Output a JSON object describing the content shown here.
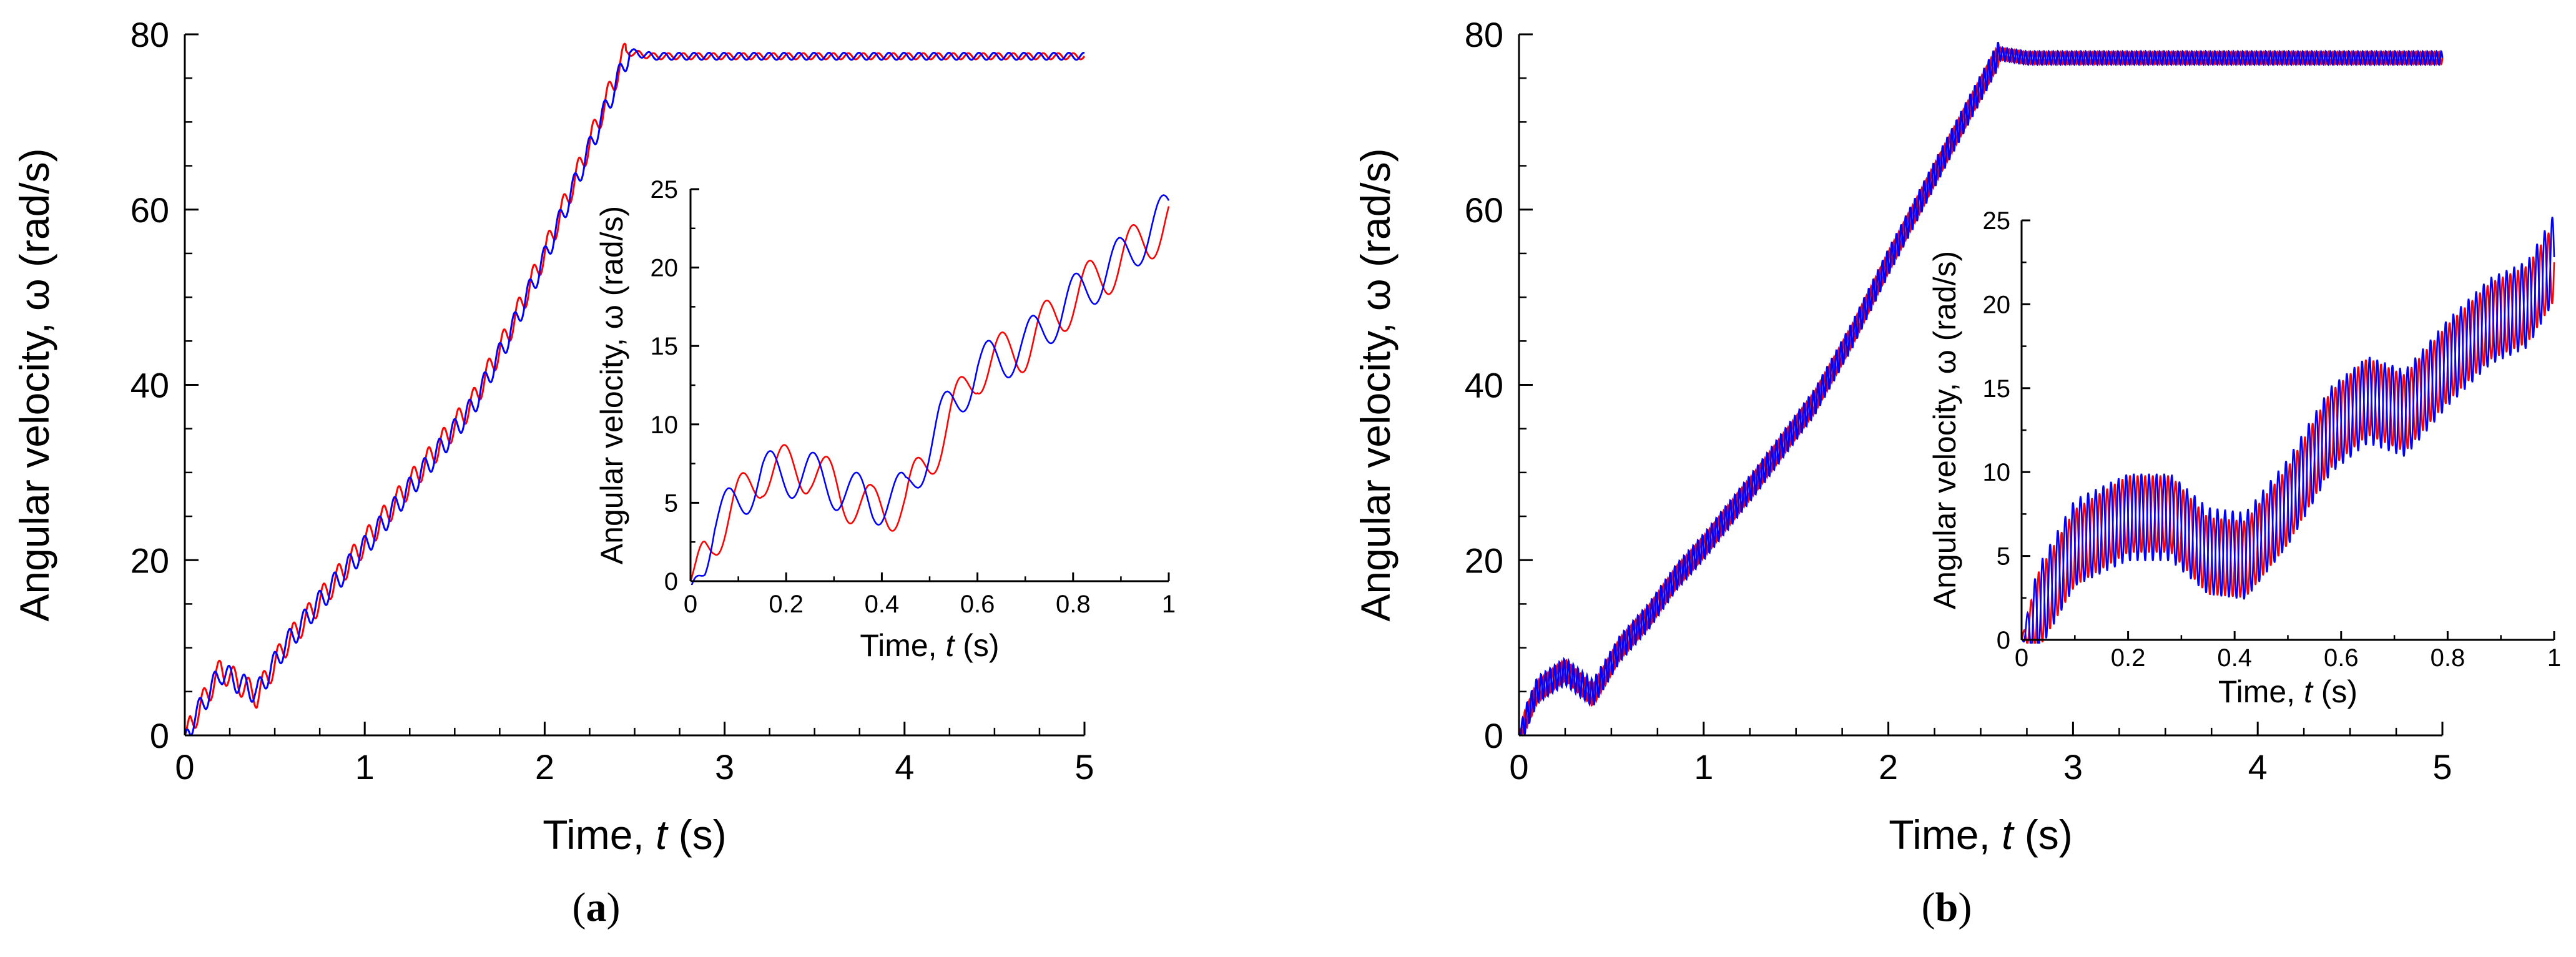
{
  "colors": {
    "red_series": "#ff0000",
    "blue_series": "#0000ff",
    "axis": "#000000"
  },
  "chart_data": [
    {
      "id": "a",
      "type": "line",
      "panel_label": "a",
      "main": {
        "xlabel_prefix": "Time, ",
        "xlabel_var": "t",
        "xlabel_unit": " (s)",
        "ylabel": "Angular velocity, ω (rad/s)",
        "xlim": [
          0,
          5
        ],
        "ylim": [
          0,
          80
        ],
        "xticks": [
          0,
          1,
          2,
          3,
          4,
          5
        ],
        "yticks": [
          0,
          20,
          40,
          60,
          80
        ],
        "xtick_labels": [
          "0",
          "1",
          "2",
          "3",
          "4",
          "5"
        ],
        "ytick_labels": [
          "0",
          "20",
          "40",
          "60",
          "80"
        ],
        "series": [
          {
            "name": "red",
            "color": "#ff0000",
            "base": [
              [
                0,
                0
              ],
              [
                0.2,
                7.5
              ],
              [
                0.4,
                4.5
              ],
              [
                0.55,
                10
              ],
              [
                0.7,
                14
              ],
              [
                1,
                22
              ],
              [
                1.3,
                30
              ],
              [
                1.6,
                38
              ],
              [
                1.8,
                46
              ],
              [
                2.0,
                55
              ],
              [
                2.2,
                65
              ],
              [
                2.45,
                78
              ],
              [
                2.6,
                77.5
              ],
              [
                5,
                77.5
              ]
            ],
            "ripple": {
              "amp": 1.4,
              "amp_end": 0.35,
              "freq": 12,
              "phase": 0,
              "settle": 2.45
            }
          },
          {
            "name": "blue",
            "color": "#0000ff",
            "base": [
              [
                0,
                0
              ],
              [
                0.2,
                7.2
              ],
              [
                0.4,
                4.8
              ],
              [
                0.55,
                10
              ],
              [
                0.7,
                14
              ],
              [
                1,
                21.5
              ],
              [
                1.3,
                29.5
              ],
              [
                1.6,
                37.5
              ],
              [
                1.8,
                45.5
              ],
              [
                2.0,
                54.5
              ],
              [
                2.2,
                64.5
              ],
              [
                2.47,
                78
              ],
              [
                2.6,
                77.5
              ],
              [
                5,
                77.5
              ]
            ],
            "ripple": {
              "amp": 1.3,
              "amp_end": 0.4,
              "freq": 12,
              "phase": 1.8,
              "settle": 2.47
            }
          }
        ]
      },
      "inset": {
        "xlabel_prefix": "Time, ",
        "xlabel_var": "t",
        "xlabel_unit": " (s)",
        "ylabel": "Angular velocity, ω (rad/s)",
        "xlim": [
          0,
          1
        ],
        "ylim": [
          0,
          25
        ],
        "xticks": [
          0,
          0.2,
          0.4,
          0.6,
          0.8,
          1
        ],
        "yticks": [
          0,
          5,
          10,
          15,
          20,
          25
        ],
        "xtick_labels": [
          "0",
          "0.2",
          "0.4",
          "0.6",
          "0.8",
          "1"
        ],
        "ytick_labels": [
          "0",
          "5",
          "10",
          "15",
          "20",
          "25"
        ],
        "series": [
          {
            "name": "red",
            "color": "#ff0000",
            "base": [
              [
                0,
                0
              ],
              [
                0.05,
                3
              ],
              [
                0.15,
                7
              ],
              [
                0.25,
                7.2
              ],
              [
                0.32,
                5.5
              ],
              [
                0.38,
                4.5
              ],
              [
                0.45,
                5
              ],
              [
                0.52,
                9
              ],
              [
                0.6,
                13.5
              ],
              [
                0.7,
                15
              ],
              [
                0.8,
                18
              ],
              [
                0.9,
                20.5
              ],
              [
                1,
                23
              ]
            ],
            "ripple": {
              "amp": 1.6,
              "freq": 11,
              "phase": 0.6
            }
          },
          {
            "name": "blue",
            "color": "#0000ff",
            "base": [
              [
                0,
                -0.5
              ],
              [
                0.05,
                3.5
              ],
              [
                0.15,
                6.8
              ],
              [
                0.25,
                6.8
              ],
              [
                0.32,
                5.8
              ],
              [
                0.38,
                5
              ],
              [
                0.45,
                5.5
              ],
              [
                0.52,
                10
              ],
              [
                0.6,
                13.5
              ],
              [
                0.7,
                15
              ],
              [
                0.8,
                18
              ],
              [
                0.9,
                20.5
              ],
              [
                1,
                23.5
              ]
            ],
            "ripple": {
              "amp": 1.5,
              "freq": 11,
              "phase": 2.6
            }
          }
        ]
      }
    },
    {
      "id": "b",
      "type": "line",
      "panel_label": "b",
      "main": {
        "xlabel_prefix": "Time, ",
        "xlabel_var": "t",
        "xlabel_unit": " (s)",
        "ylabel": "Angular velocity, ω (rad/s)",
        "xlim": [
          0,
          5
        ],
        "ylim": [
          0,
          80
        ],
        "xticks": [
          0,
          1,
          2,
          3,
          4,
          5
        ],
        "yticks": [
          0,
          20,
          40,
          60,
          80
        ],
        "xtick_labels": [
          "0",
          "1",
          "2",
          "3",
          "4",
          "5"
        ],
        "ytick_labels": [
          "0",
          "20",
          "40",
          "60",
          "80"
        ],
        "series": [
          {
            "name": "red",
            "color": "#ff0000",
            "base": [
              [
                0,
                0
              ],
              [
                0.1,
                5
              ],
              [
                0.25,
                7.5
              ],
              [
                0.4,
                4.5
              ],
              [
                0.55,
                10
              ],
              [
                0.7,
                13.5
              ],
              [
                0.85,
                18
              ],
              [
                1,
                21.5
              ],
              [
                1.3,
                29.5
              ],
              [
                1.6,
                38
              ],
              [
                1.8,
                45.5
              ],
              [
                2.0,
                54
              ],
              [
                2.3,
                66
              ],
              [
                2.6,
                77.8
              ],
              [
                2.75,
                77.3
              ],
              [
                5,
                77.3
              ]
            ],
            "ripple": {
              "amp": 1.2,
              "amp_end": 0.7,
              "freq": 40,
              "phase": 0,
              "settle": 2.6
            }
          },
          {
            "name": "blue",
            "color": "#0000ff",
            "base": [
              [
                0,
                0
              ],
              [
                0.1,
                5.2
              ],
              [
                0.25,
                7.3
              ],
              [
                0.4,
                4.8
              ],
              [
                0.55,
                10
              ],
              [
                0.7,
                13.5
              ],
              [
                0.85,
                18
              ],
              [
                1,
                21.5
              ],
              [
                1.3,
                29.5
              ],
              [
                1.6,
                38
              ],
              [
                1.8,
                45.5
              ],
              [
                2.0,
                54
              ],
              [
                2.3,
                66
              ],
              [
                2.6,
                77.8
              ],
              [
                2.75,
                77.3
              ],
              [
                5,
                77.3
              ]
            ],
            "ripple": {
              "amp": 1.5,
              "amp_end": 0.75,
              "freq": 40,
              "phase": 3.14,
              "settle": 2.6
            }
          }
        ]
      },
      "inset": {
        "xlabel_prefix": "Time, ",
        "xlabel_var": "t",
        "xlabel_unit": " (s)",
        "ylabel": "Angular velocity, ω (rad/s)",
        "xlim": [
          0,
          1
        ],
        "ylim": [
          0,
          25
        ],
        "xticks": [
          0,
          0.2,
          0.4,
          0.6,
          0.8,
          1
        ],
        "yticks": [
          0,
          5,
          10,
          15,
          20,
          25
        ],
        "xtick_labels": [
          "0",
          "0.2",
          "0.4",
          "0.6",
          "0.8",
          "1"
        ],
        "ytick_labels": [
          "0",
          "5",
          "10",
          "15",
          "20",
          "25"
        ],
        "series": [
          {
            "name": "red",
            "color": "#ff0000",
            "base": [
              [
                0,
                0
              ],
              [
                0.1,
                5.5
              ],
              [
                0.2,
                7.5
              ],
              [
                0.28,
                7.5
              ],
              [
                0.35,
                5
              ],
              [
                0.42,
                4.8
              ],
              [
                0.5,
                8
              ],
              [
                0.58,
                12.5
              ],
              [
                0.65,
                14.5
              ],
              [
                0.72,
                13.5
              ],
              [
                0.8,
                16.5
              ],
              [
                0.88,
                19
              ],
              [
                0.95,
                20
              ],
              [
                1,
                22.5
              ]
            ],
            "ripple": {
              "amp": 2.3,
              "amp_end": 1.1,
              "freq": 70,
              "phase": 0,
              "settle": 1.0
            }
          },
          {
            "name": "blue",
            "color": "#0000ff",
            "base": [
              [
                0,
                0
              ],
              [
                0.1,
                5.8
              ],
              [
                0.2,
                7.3
              ],
              [
                0.28,
                7.3
              ],
              [
                0.35,
                5.3
              ],
              [
                0.42,
                5
              ],
              [
                0.5,
                8.2
              ],
              [
                0.58,
                12.5
              ],
              [
                0.65,
                14.3
              ],
              [
                0.72,
                13.5
              ],
              [
                0.8,
                16.5
              ],
              [
                0.88,
                19
              ],
              [
                0.95,
                20
              ],
              [
                1,
                22.8
              ]
            ],
            "ripple": {
              "amp": 2.6,
              "amp_end": 1.2,
              "freq": 70,
              "phase": 3.14,
              "settle": 1.0
            }
          }
        ]
      }
    }
  ]
}
